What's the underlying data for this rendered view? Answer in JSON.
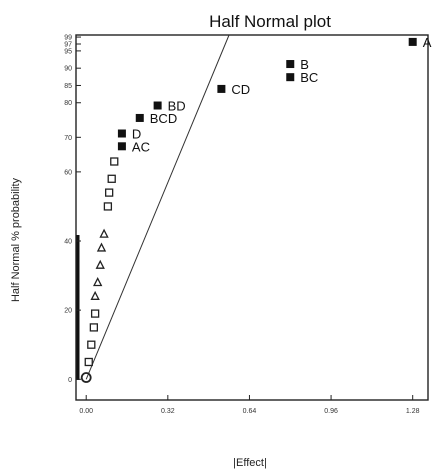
{
  "chart_data": {
    "type": "scatter",
    "title": "Half Normal plot",
    "xlabel": "|Effect|",
    "ylabel": "Half Normal % probability",
    "x_ticks": [
      "0.00",
      "0.32",
      "0.64",
      "0.96",
      "1.28"
    ],
    "x_tick_values": [
      0.0,
      0.32,
      0.64,
      0.96,
      1.28
    ],
    "y_ticks": [
      "0",
      "20",
      "40",
      "60",
      "70",
      "80",
      "85",
      "90",
      "95",
      "97",
      "99"
    ],
    "y_tick_values": [
      0,
      20,
      40,
      60,
      70,
      80,
      85,
      90,
      95,
      97,
      99
    ],
    "xlim": [
      -0.04,
      1.34
    ],
    "ylim": [
      -6,
      99.6
    ],
    "grid": false,
    "reference_line": {
      "x": [
        0.0,
        0.56
      ],
      "y": [
        0,
        99.6
      ]
    },
    "labeled_effects": [
      {
        "label": "A",
        "x": 1.28,
        "y": 97.6
      },
      {
        "label": "B",
        "x": 0.8,
        "y": 91.2
      },
      {
        "label": "BC",
        "x": 0.8,
        "y": 87.4
      },
      {
        "label": "CD",
        "x": 0.53,
        "y": 84.0
      },
      {
        "label": "BD",
        "x": 0.28,
        "y": 79.2
      },
      {
        "label": "BCD",
        "x": 0.21,
        "y": 75.6
      },
      {
        "label": "D",
        "x": 0.14,
        "y": 71.1
      },
      {
        "label": "AC",
        "x": 0.14,
        "y": 67.4
      }
    ],
    "unlabeled_effects": [
      {
        "marker": "circle",
        "x": 0.0,
        "y": 0.5
      },
      {
        "marker": "square",
        "x": 0.01,
        "y": 5
      },
      {
        "marker": "square",
        "x": 0.02,
        "y": 10
      },
      {
        "marker": "square",
        "x": 0.03,
        "y": 15
      },
      {
        "marker": "square",
        "x": 0.035,
        "y": 19
      },
      {
        "marker": "triangle",
        "x": 0.035,
        "y": 24
      },
      {
        "marker": "triangle",
        "x": 0.045,
        "y": 28
      },
      {
        "marker": "triangle",
        "x": 0.055,
        "y": 33
      },
      {
        "marker": "triangle",
        "x": 0.06,
        "y": 38
      },
      {
        "marker": "triangle",
        "x": 0.07,
        "y": 42
      },
      {
        "marker": "square",
        "x": 0.085,
        "y": 50
      },
      {
        "marker": "square",
        "x": 0.09,
        "y": 54
      },
      {
        "marker": "square",
        "x": 0.1,
        "y": 58
      },
      {
        "marker": "square",
        "x": 0.11,
        "y": 63
      }
    ],
    "colors": {
      "labeled": "#111111",
      "unlabeled": "#222222",
      "line": "#333333"
    }
  }
}
